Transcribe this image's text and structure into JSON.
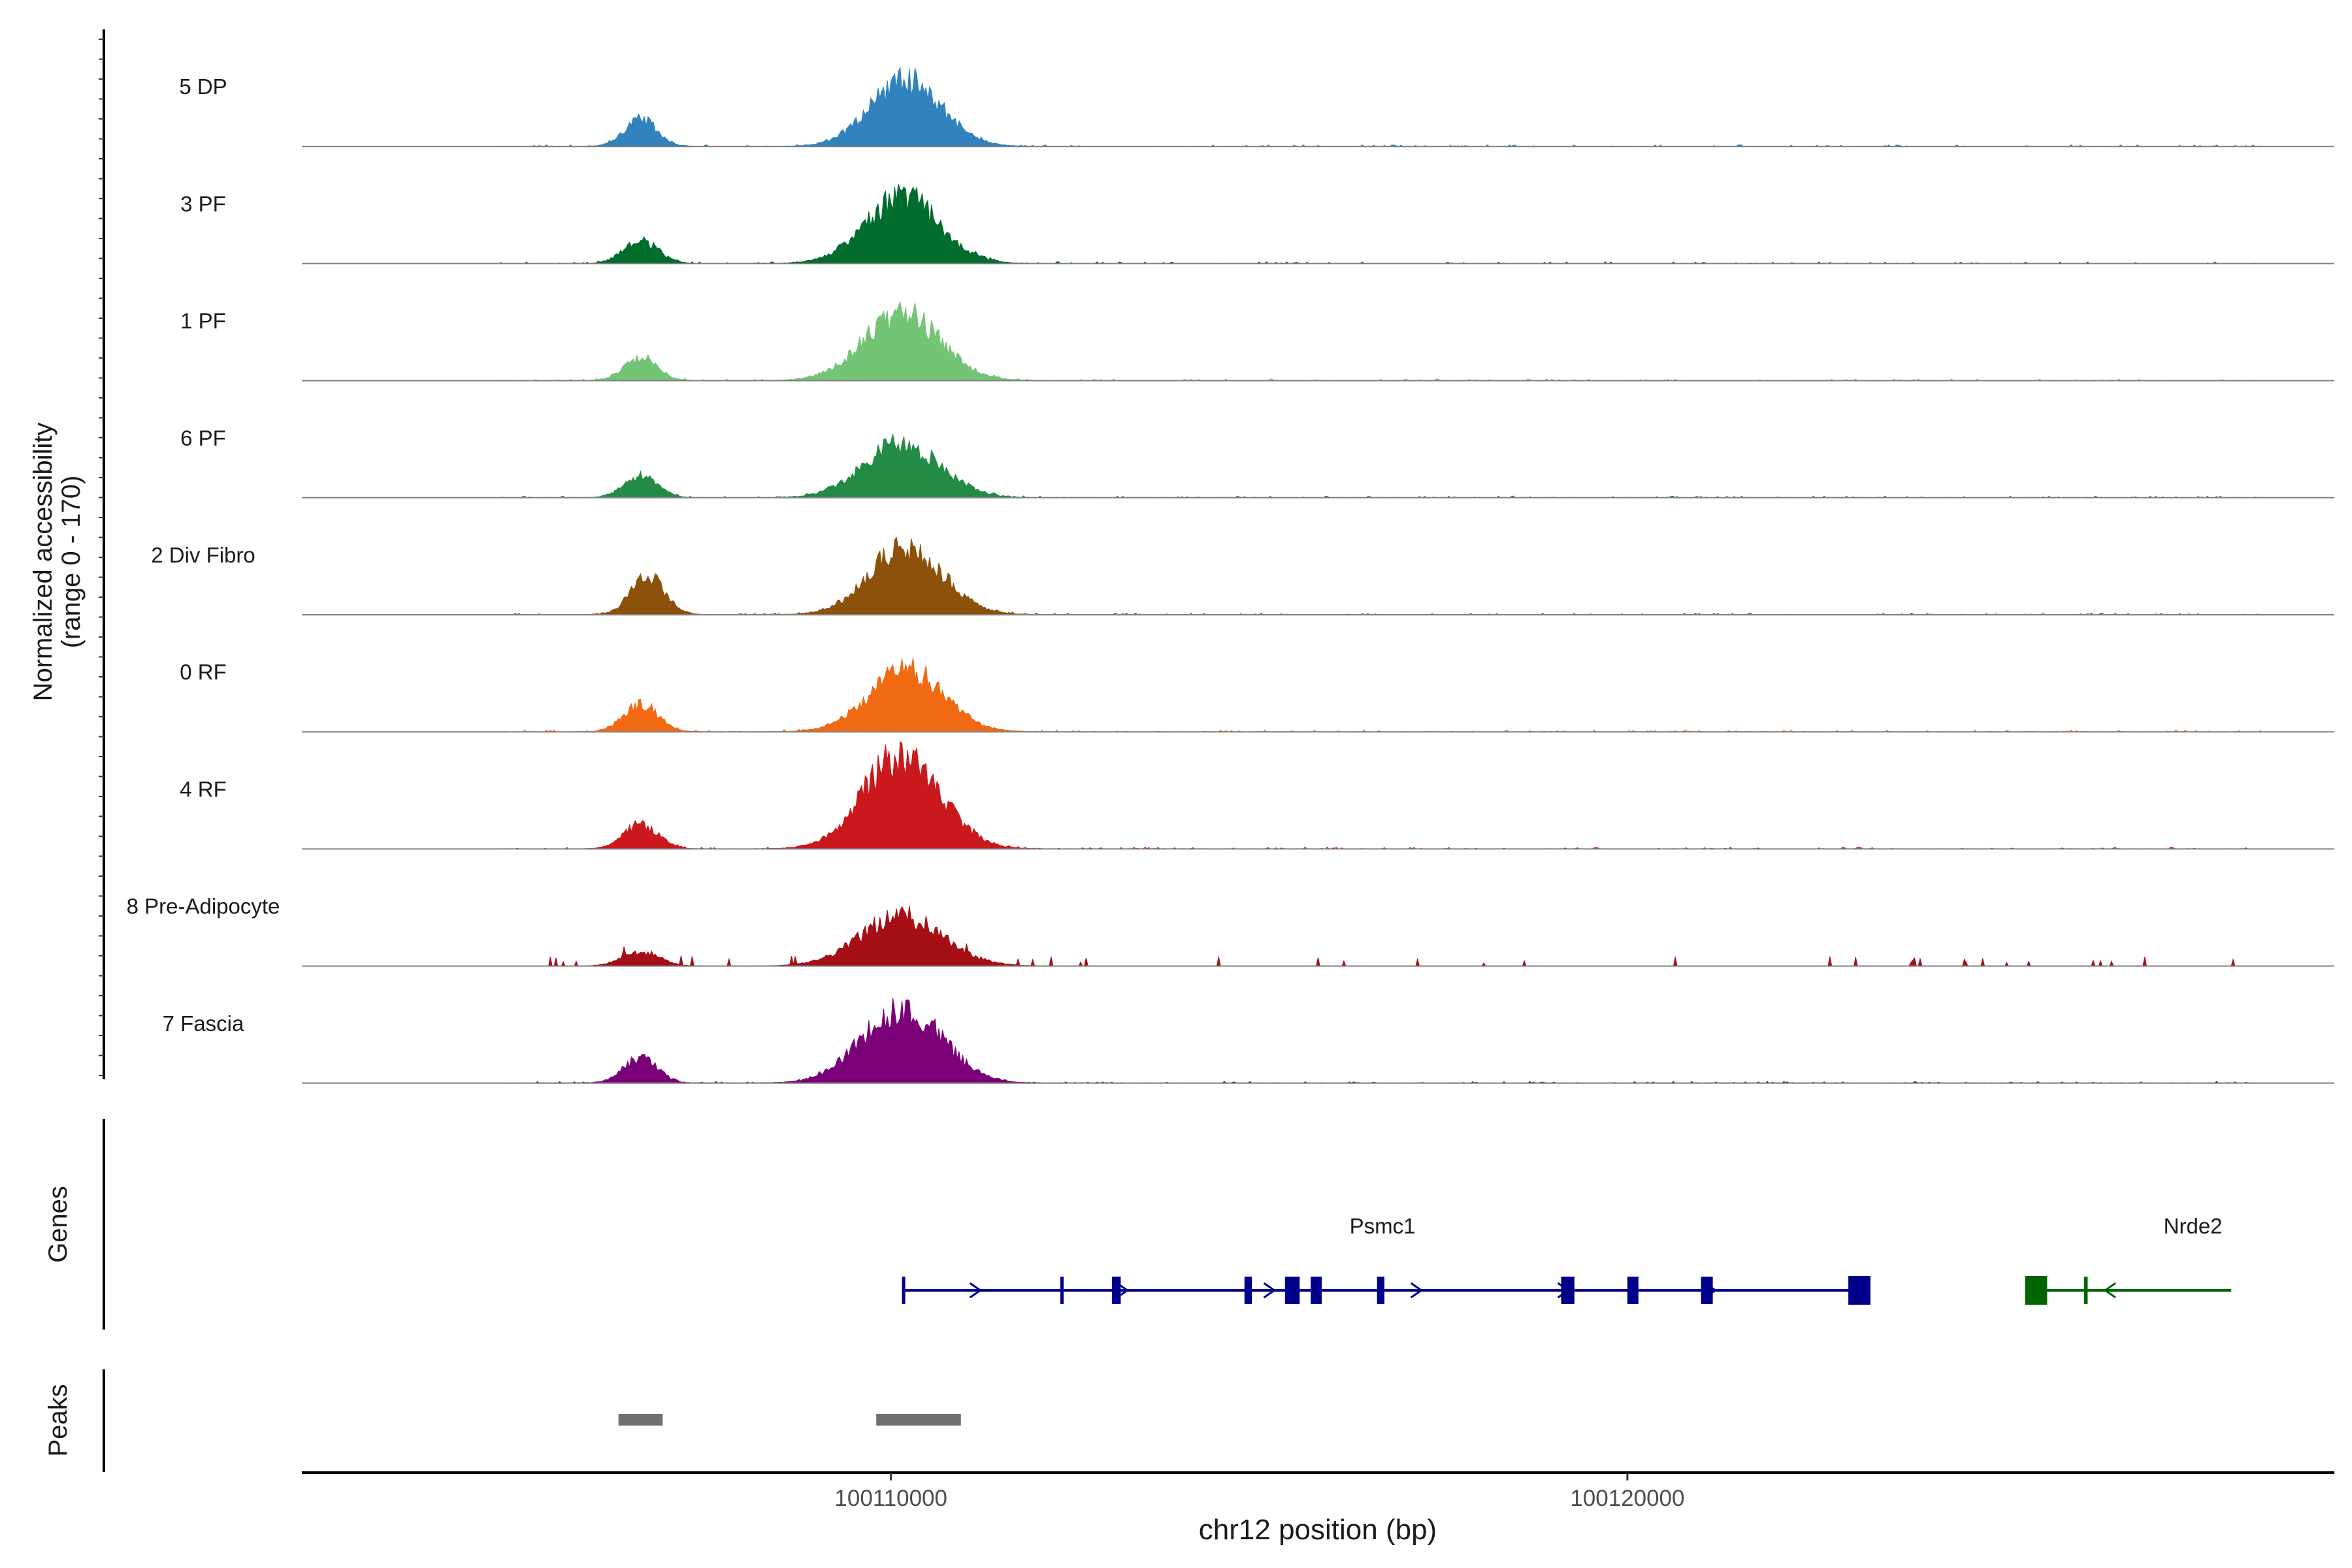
{
  "chart_data": {
    "type": "area",
    "coverage_panel": {
      "ylabel_line1": "Normalized accessibility",
      "ylabel_line2": "(range 0 - 170)",
      "ylim": [
        0,
        170
      ],
      "tracks": [
        {
          "name": "5 DP",
          "color": "#3182bd",
          "peaks": [
            [
              100106600,
              40,
              220
            ],
            [
              100110200,
              100,
              480
            ]
          ]
        },
        {
          "name": "3 PF",
          "color": "#006d2c",
          "peaks": [
            [
              100106600,
              35,
              230
            ],
            [
              100110150,
              100,
              500
            ]
          ]
        },
        {
          "name": "1 PF",
          "color": "#74c476",
          "peaks": [
            [
              100106600,
              35,
              220
            ],
            [
              100110150,
              100,
              520
            ]
          ]
        },
        {
          "name": "6 PF",
          "color": "#238b45",
          "peaks": [
            [
              100106600,
              32,
              230
            ],
            [
              100110150,
              80,
              520
            ]
          ]
        },
        {
          "name": "2 Div Fibro",
          "color": "#8c510a",
          "peaks": [
            [
              100106700,
              56,
              230
            ],
            [
              100110200,
              100,
              500
            ]
          ]
        },
        {
          "name": "0 RF",
          "color": "#f16913",
          "peaks": [
            [
              100106600,
              42,
              230
            ],
            [
              100110200,
              95,
              500
            ]
          ]
        },
        {
          "name": "4 RF",
          "color": "#cb181d",
          "peaks": [
            [
              100106600,
              38,
              230
            ],
            [
              100110150,
              140,
              520
            ]
          ]
        },
        {
          "name": "8 Pre-Adipocyte",
          "color": "#a50f15",
          "peaks": [
            [
              100106600,
              22,
              250
            ],
            [
              100110150,
              75,
              560
            ]
          ]
        },
        {
          "name": "7 Fascia",
          "color": "#7a0177",
          "peaks": [
            [
              100106600,
              38,
              230
            ],
            [
              100110150,
              110,
              540
            ]
          ]
        }
      ]
    },
    "genes_panel": {
      "ylabel": "Genes",
      "genes": [
        {
          "name": "Psmc1",
          "strand": "+",
          "color": "#00008b",
          "start": 100110150,
          "end": 100123200,
          "exons": [
            [
              100110150,
              100110180
            ],
            [
              100112300,
              100112340
            ],
            [
              100113000,
              100113120
            ],
            [
              100114800,
              100114900
            ],
            [
              100115350,
              100115550
            ],
            [
              100115700,
              100115850
            ],
            [
              100116600,
              100116700
            ],
            [
              100119100,
              100119280
            ],
            [
              100120000,
              100120150
            ],
            [
              100121000,
              100121160
            ],
            [
              100123000,
              100123300
            ]
          ]
        },
        {
          "name": "Nrde2",
          "strand": "-",
          "color": "#006400",
          "start": 100125600,
          "end": 100128200,
          "exons": [
            [
              100125400,
              100125700
            ],
            [
              100126200,
              100126250
            ]
          ]
        }
      ]
    },
    "peaks_panel": {
      "ylabel": "Peaks",
      "peaks": [
        [
          100106300,
          100106900
        ],
        [
          100109800,
          100110950
        ]
      ]
    },
    "x_axis": {
      "label": "chr12 position (bp)",
      "xlim": [
        100102000,
        100129600
      ],
      "ticks": [
        100110000,
        100120000
      ],
      "tick_labels": [
        "100110000",
        "100120000"
      ]
    }
  }
}
